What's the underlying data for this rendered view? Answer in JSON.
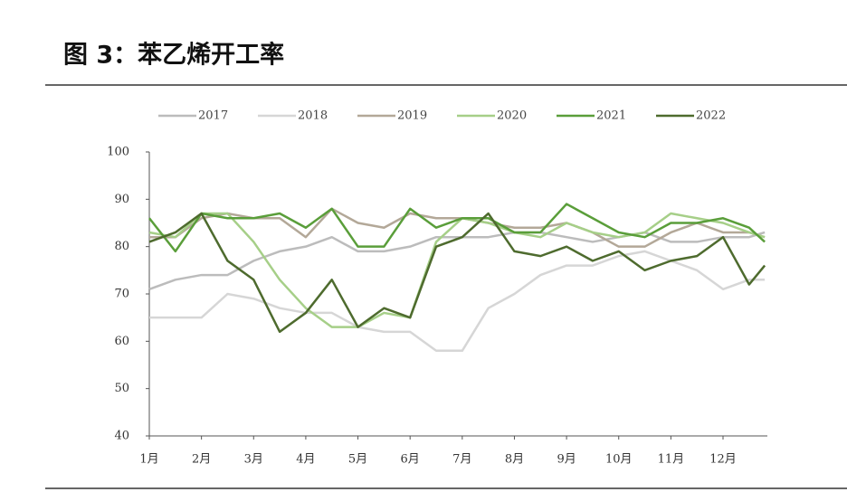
{
  "chart_data": {
    "type": "line",
    "title": "图 3：苯乙烯开工率",
    "x": [
      1,
      1.5,
      2,
      2.5,
      3,
      3.5,
      4,
      4.5,
      5,
      5.5,
      6,
      6.5,
      7,
      7.5,
      8,
      8.5,
      9,
      9.5,
      10,
      10.5,
      11,
      11.5,
      12,
      12.5,
      12.8
    ],
    "series": [
      {
        "name": "2017",
        "color": "#bcbcbc",
        "values": [
          71,
          73,
          74,
          74,
          77,
          79,
          80,
          82,
          79,
          79,
          80,
          82,
          82,
          82,
          83,
          83,
          82,
          81,
          82,
          83,
          81,
          81,
          82,
          82,
          83
        ]
      },
      {
        "name": "2018",
        "color": "#d6d6d6",
        "values": [
          65,
          65,
          65,
          70,
          69,
          67,
          66,
          66,
          63,
          62,
          62,
          58,
          58,
          67,
          70,
          74,
          76,
          76,
          78,
          79,
          77,
          75,
          71,
          73,
          73
        ]
      },
      {
        "name": "2019",
        "color": "#b3a898",
        "values": [
          82,
          82,
          86,
          87,
          86,
          86,
          82,
          88,
          85,
          84,
          87,
          86,
          86,
          85,
          84,
          84,
          85,
          83,
          80,
          80,
          83,
          85,
          83,
          83,
          82
        ]
      },
      {
        "name": "2020",
        "color": "#a6cf88",
        "values": [
          83,
          82,
          87,
          87,
          81,
          73,
          67,
          63,
          63,
          66,
          65,
          81,
          86,
          85,
          83,
          82,
          85,
          83,
          82,
          83,
          87,
          86,
          85,
          83,
          82
        ]
      },
      {
        "name": "2021",
        "color": "#5a9e3a",
        "values": [
          86,
          79,
          87,
          86,
          86,
          87,
          84,
          88,
          80,
          80,
          88,
          84,
          86,
          86,
          83,
          83,
          89,
          86,
          83,
          82,
          85,
          85,
          86,
          84,
          81
        ]
      },
      {
        "name": "2022",
        "color": "#4e6b2e",
        "values": [
          81,
          83,
          87,
          77,
          73,
          62,
          66,
          73,
          63,
          67,
          65,
          80,
          82,
          87,
          79,
          78,
          80,
          77,
          79,
          75,
          77,
          78,
          82,
          72,
          76
        ]
      }
    ],
    "xlim": [
      1,
      12.85
    ],
    "xticks": [
      {
        "value": 1,
        "label": "1月"
      },
      {
        "value": 2,
        "label": "2月"
      },
      {
        "value": 3,
        "label": "3月"
      },
      {
        "value": 4,
        "label": "4月"
      },
      {
        "value": 5,
        "label": "5月"
      },
      {
        "value": 6,
        "label": "6月"
      },
      {
        "value": 7,
        "label": "7月"
      },
      {
        "value": 8,
        "label": "8月"
      },
      {
        "value": 9,
        "label": "9月"
      },
      {
        "value": 10,
        "label": "10月"
      },
      {
        "value": 11,
        "label": "11月"
      },
      {
        "value": 12,
        "label": "12月"
      }
    ],
    "ylim": [
      40,
      100
    ],
    "yticks": [
      40,
      50,
      60,
      70,
      80,
      90,
      100
    ],
    "grid": false,
    "legend": "top"
  }
}
